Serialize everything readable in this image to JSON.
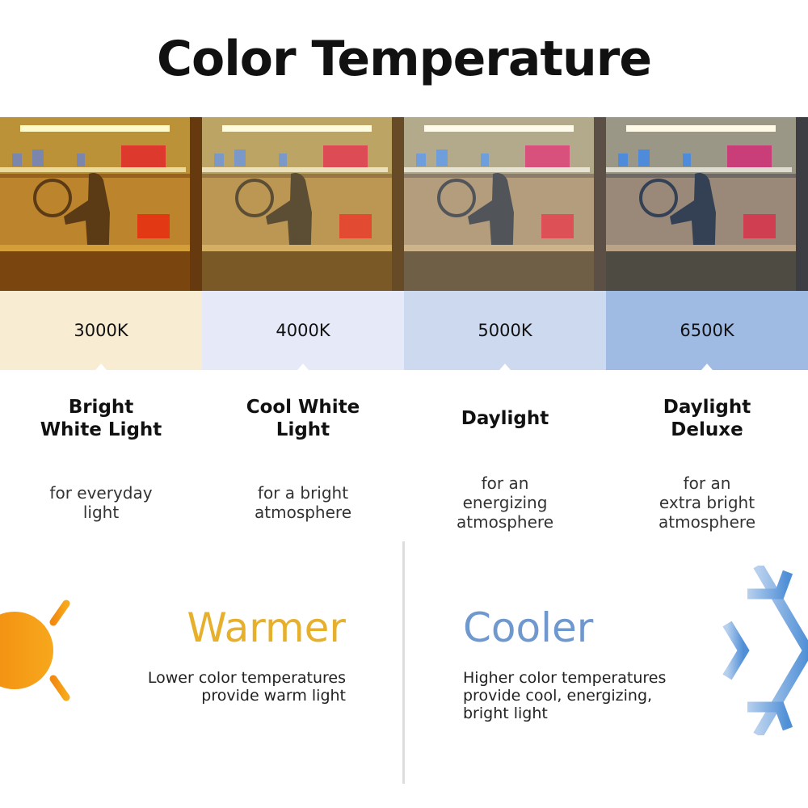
{
  "title": "Color Temperature",
  "temperatures": [
    {
      "kelvin": "3000K",
      "name_line1": "Bright",
      "name_line2": "White Light",
      "desc_line1": "for everyday",
      "desc_line2": "light",
      "desc_line3": "",
      "band_color": "#f8edd3",
      "tint": "#ffb84a"
    },
    {
      "kelvin": "4000K",
      "name_line1": "Cool White",
      "name_line2": "Light",
      "desc_line1": "for a bright",
      "desc_line2": "atmosphere",
      "desc_line3": "",
      "band_color": "#e6eaf8",
      "tint": "#ffe2a8"
    },
    {
      "kelvin": "5000K",
      "name_line1": "Daylight",
      "name_line2": "",
      "desc_line1": "for an",
      "desc_line2": "energizing",
      "desc_line3": "atmosphere",
      "band_color": "#cdd9ee",
      "tint": "#e8eef8"
    },
    {
      "kelvin": "6500K",
      "name_line1": "Daylight",
      "name_line2": "Deluxe",
      "desc_line1": "for an",
      "desc_line2": "extra bright",
      "desc_line3": "atmosphere",
      "band_color": "#9fbbe3",
      "tint": "#a8c4f0"
    }
  ],
  "warmer": {
    "heading": "Warmer",
    "line1": "Lower color temperatures",
    "line2": "provide warm light",
    "color": "#e6b02c",
    "icon": "sun-icon"
  },
  "cooler": {
    "heading": "Cooler",
    "line1": "Higher color temperatures",
    "line2": "provide cool, energizing,",
    "line3": "bright light",
    "color": "#6f98cf",
    "icon": "snowflake-icon"
  }
}
